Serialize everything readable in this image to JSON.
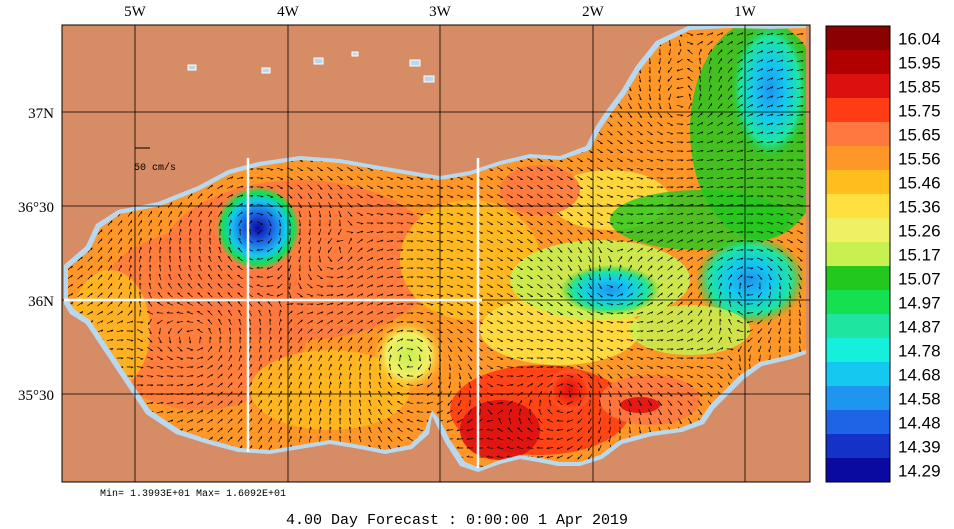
{
  "lon_labels": [
    "5W",
    "4W",
    "3W",
    "2W",
    "1W"
  ],
  "lat_labels": [
    "37N",
    "36°30",
    "36N",
    "35°30"
  ],
  "scale_label": "50 cm/s",
  "minmax_text": "Min= 1.3993E+01  Max= 1.6092E+01",
  "footer_text": "4.00 Day Forecast :  0:00:00   1 Apr 2019",
  "colorbar": {
    "labels": [
      "16.04",
      "15.95",
      "15.85",
      "15.75",
      "15.65",
      "15.56",
      "15.46",
      "15.36",
      "15.26",
      "15.17",
      "15.07",
      "14.97",
      "14.87",
      "14.78",
      "14.68",
      "14.58",
      "14.48",
      "14.39",
      "14.29"
    ],
    "colors": [
      "#8b0000",
      "#b00000",
      "#dd1010",
      "#ff3c14",
      "#ff7840",
      "#ff9628",
      "#ffbe1e",
      "#ffe040",
      "#f0f064",
      "#c8f050",
      "#22c81e",
      "#14e050",
      "#1ee6a0",
      "#14f0dc",
      "#14c8f0",
      "#1e96f0",
      "#1e64e6",
      "#1432c8",
      "#0a0aa0"
    ]
  },
  "colors": {
    "land": "#d68c64",
    "shelf": "#b8d8f0"
  }
}
